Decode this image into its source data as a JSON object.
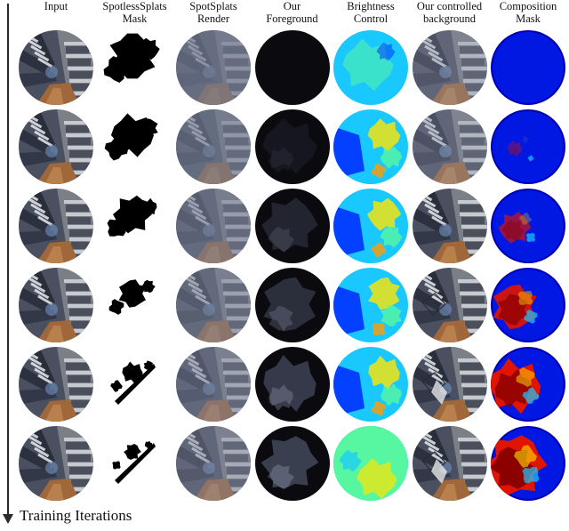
{
  "column_headers": [
    "Input",
    "SpotlessSplats\nMask",
    "SpotSplats\nRender",
    "Our\nForeground",
    "Brightness\nControl",
    "Our controlled\nbackground",
    "Composition\nMask"
  ],
  "column_kinds": [
    "input",
    "mask",
    "render",
    "foreground",
    "brightness",
    "background",
    "composition"
  ],
  "row_count": 6,
  "axis_label": "Training Iterations",
  "colors": {
    "jet_dark_blue": "#0000b4",
    "jet_blue": "#0028ff",
    "jet_cyan": "#19c8ff",
    "jet_green": "#56f7a0",
    "jet_yellow": "#ffe600",
    "jet_red": "#e01400",
    "jet_dark_red": "#8c0000",
    "mask_white": "#ffffff",
    "mask_black": "#000000"
  }
}
